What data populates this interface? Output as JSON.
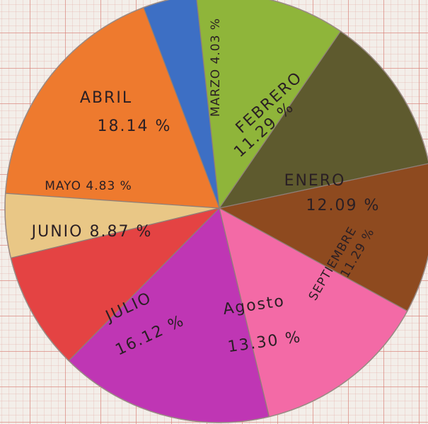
{
  "chart_data": {
    "type": "pie",
    "title": "",
    "slices": [
      {
        "label": "ENERO",
        "value": 12.09,
        "value_label": "12.09 %",
        "color": "#5e5a2e"
      },
      {
        "label": "FEBRERO",
        "value": 11.29,
        "value_label": "11.29 %",
        "color": "#8fb53a"
      },
      {
        "label": "MARZO",
        "value": 4.03,
        "value_label": "4.03 %",
        "color": "#3d6fc4"
      },
      {
        "label": "ABRIL",
        "value": 18.14,
        "value_label": "18.14 %",
        "color": "#ee7a2e"
      },
      {
        "label": "MAYO",
        "value": 4.83,
        "value_label": "4.83 %",
        "color": "#e9c786"
      },
      {
        "label": "JUNIO",
        "value": 8.87,
        "value_label": "8.87 %",
        "color": "#e44343"
      },
      {
        "label": "JULIO",
        "value": 16.12,
        "value_label": "16.12 %",
        "color": "#bf36b4"
      },
      {
        "label": "Agosto",
        "value": 13.3,
        "value_label": "13.30 %",
        "color": "#f36aa6"
      },
      {
        "label": "SEPTIEMBRE",
        "value": 11.29,
        "value_label": "11.29 %",
        "color": "#8e4a1f"
      }
    ]
  }
}
